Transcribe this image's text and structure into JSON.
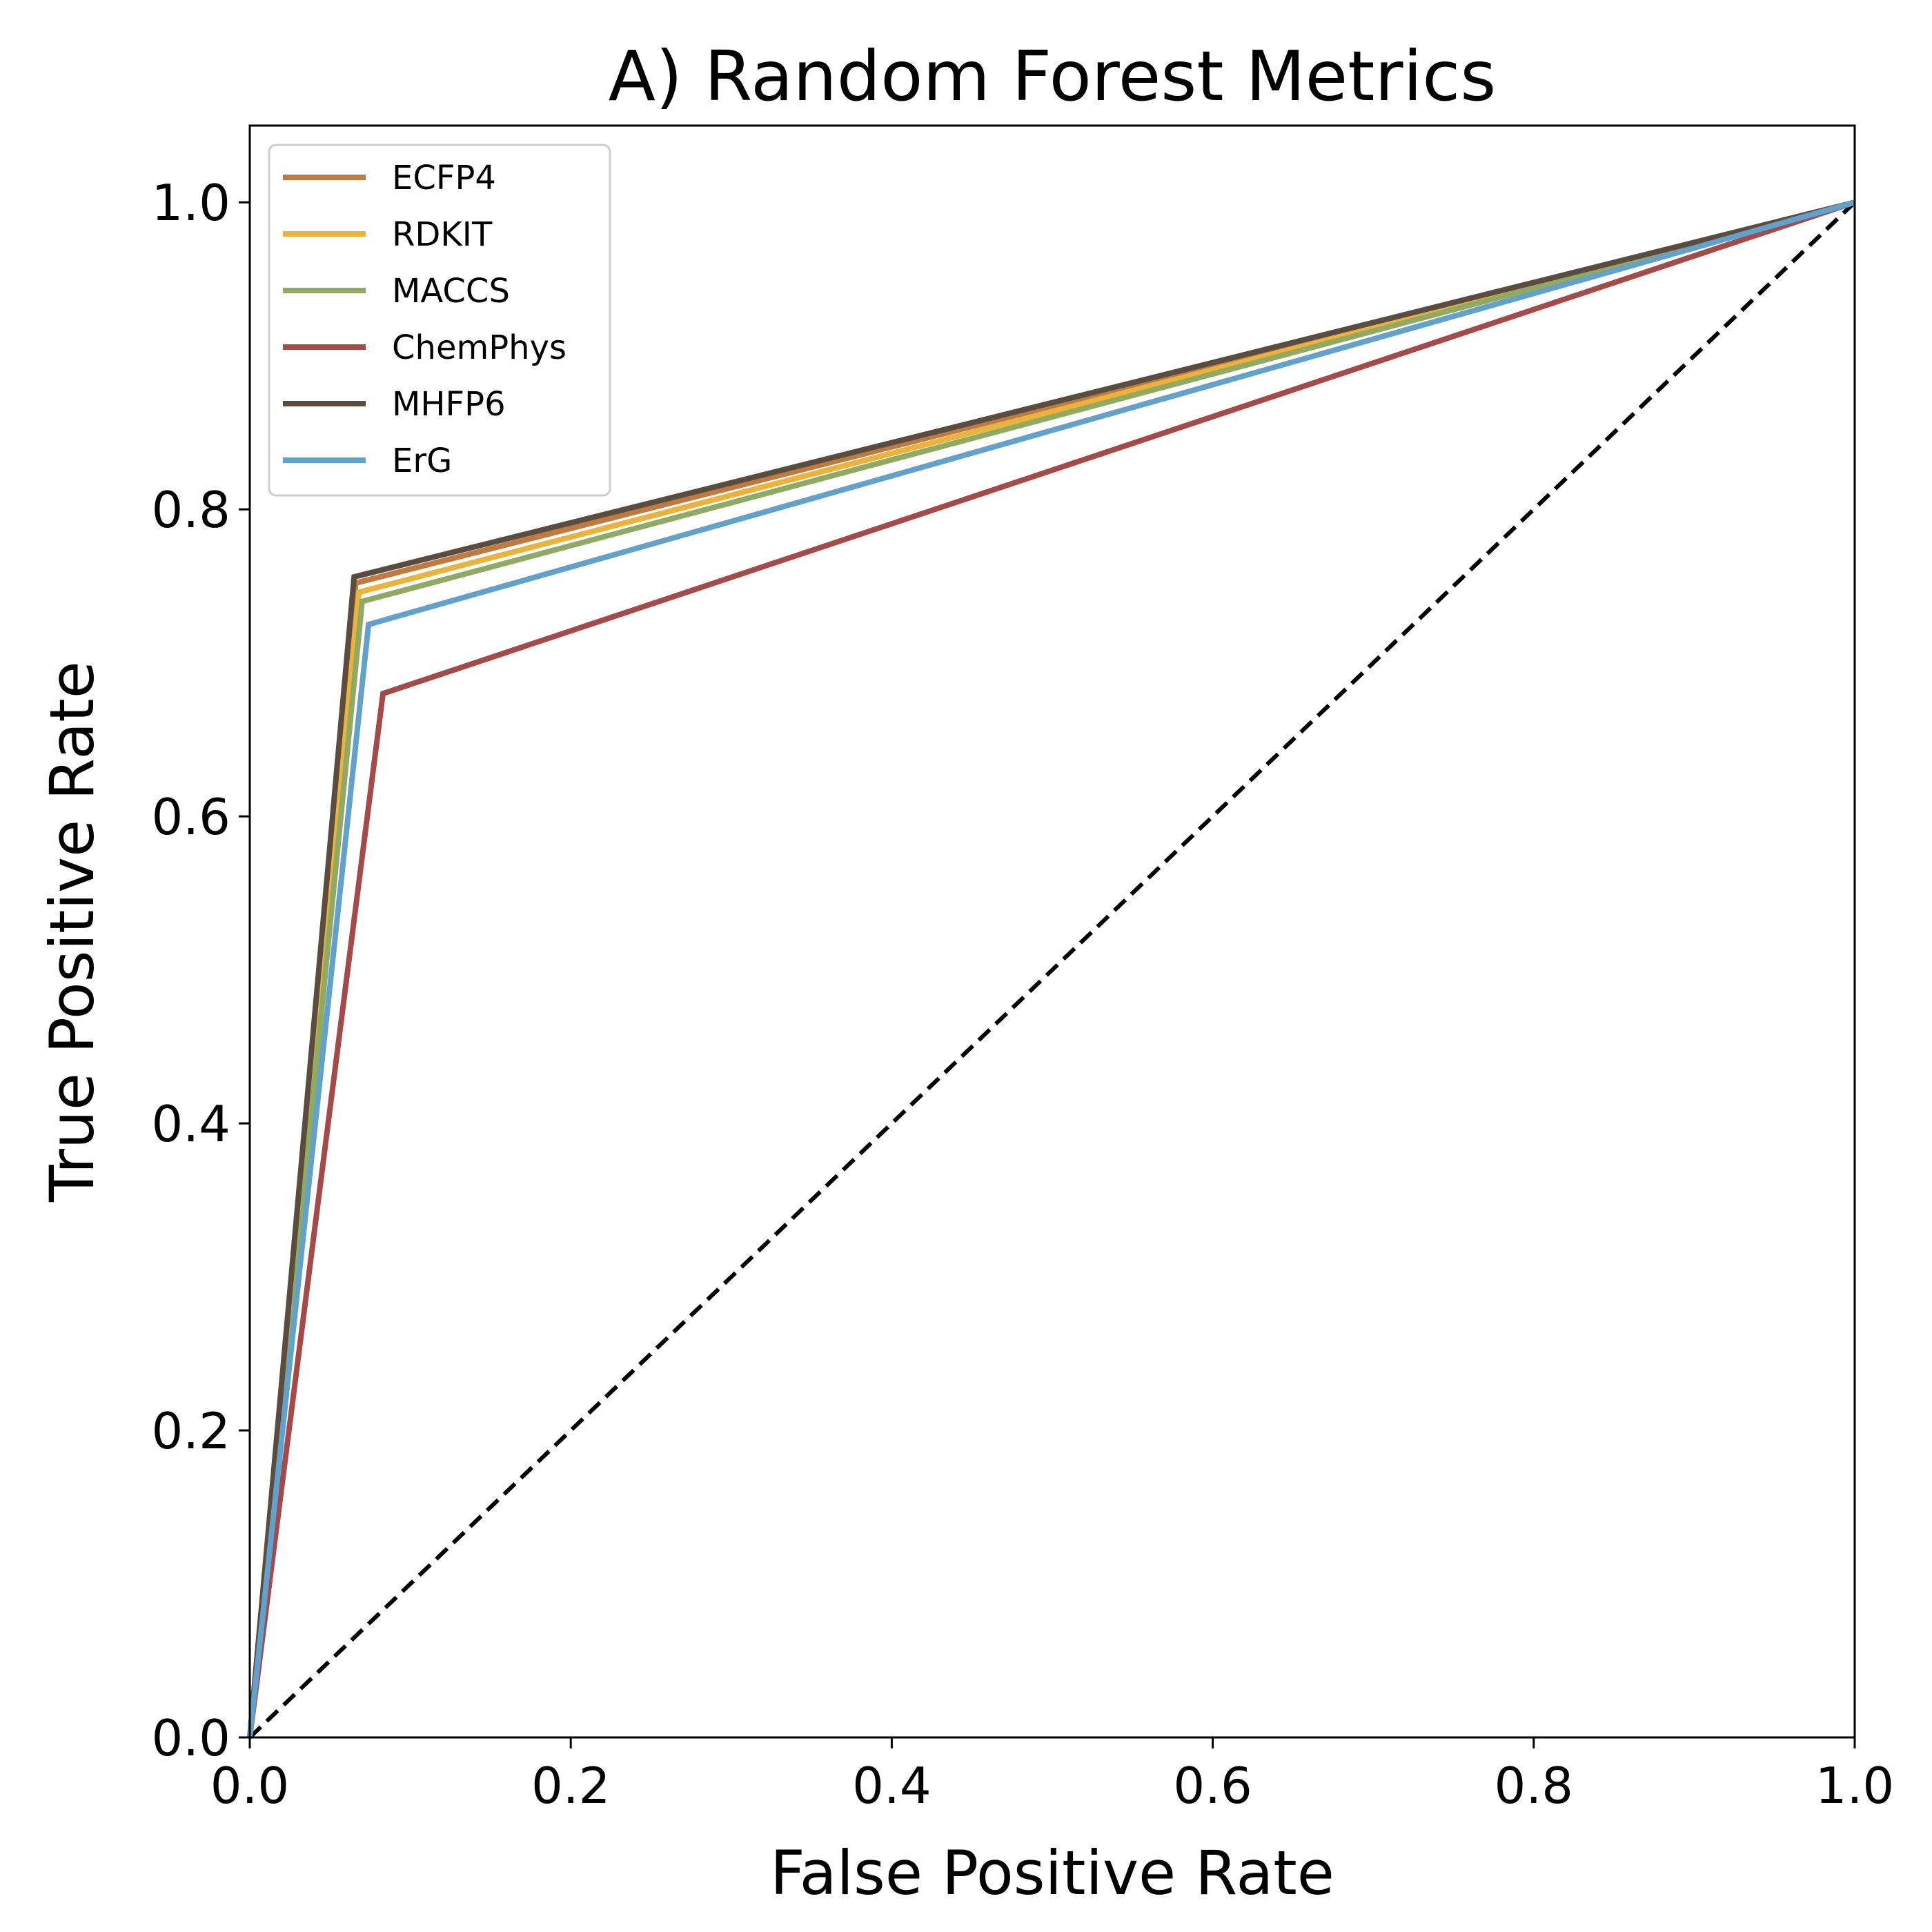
{
  "chart_data": {
    "type": "line",
    "title": "A) Random Forest Metrics",
    "xlabel": "False Positive Rate",
    "ylabel": "True Positive Rate",
    "xlim": [
      0.0,
      1.0
    ],
    "ylim": [
      0.0,
      1.05
    ],
    "xticks": [
      "0.0",
      "0.2",
      "0.4",
      "0.6",
      "0.8",
      "1.0"
    ],
    "yticks": [
      "0.0",
      "0.2",
      "0.4",
      "0.6",
      "0.8",
      "1.0"
    ],
    "grid": false,
    "legend_position": "top-left",
    "series": [
      {
        "name": "ECFP4",
        "color": "#c07a3e",
        "x": [
          0.0,
          0.066,
          1.0
        ],
        "y": [
          0.0,
          0.752,
          1.0
        ]
      },
      {
        "name": "RDKIT",
        "color": "#e9b33c",
        "x": [
          0.0,
          0.068,
          1.0
        ],
        "y": [
          0.0,
          0.746,
          1.0
        ]
      },
      {
        "name": "MACCS",
        "color": "#8faa65",
        "x": [
          0.0,
          0.07,
          1.0
        ],
        "y": [
          0.0,
          0.74,
          1.0
        ]
      },
      {
        "name": "ChemPhys",
        "color": "#a54a48",
        "x": [
          0.0,
          0.083,
          1.0
        ],
        "y": [
          0.0,
          0.68,
          1.0
        ]
      },
      {
        "name": "MHFP6",
        "color": "#5b4c40",
        "x": [
          0.0,
          0.065,
          1.0
        ],
        "y": [
          0.0,
          0.756,
          1.0
        ]
      },
      {
        "name": "ErG",
        "color": "#62a1cc",
        "x": [
          0.0,
          0.074,
          1.0
        ],
        "y": [
          0.0,
          0.725,
          1.0
        ]
      }
    ],
    "reference_line": {
      "x": [
        0.0,
        1.0
      ],
      "y": [
        0.0,
        1.0
      ],
      "color": "#000000",
      "style": "dashed"
    }
  }
}
